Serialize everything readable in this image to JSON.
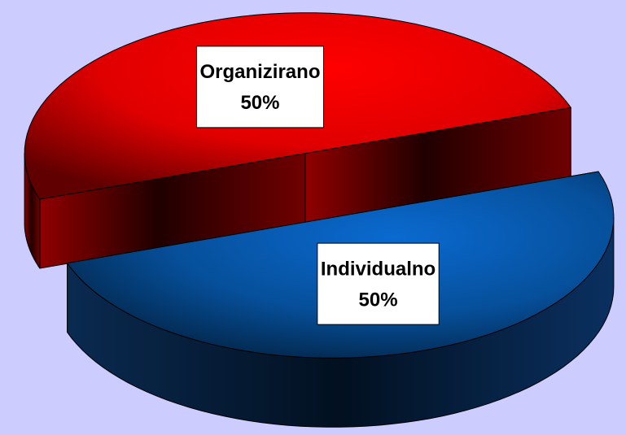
{
  "chart_data": {
    "type": "pie3d",
    "categories": [
      "Organizirano",
      "Individualno"
    ],
    "values": [
      50,
      50
    ],
    "value_labels": [
      "50%",
      "50%"
    ],
    "colors": [
      "#ff0000",
      "#0066cc"
    ],
    "exploded": true
  }
}
